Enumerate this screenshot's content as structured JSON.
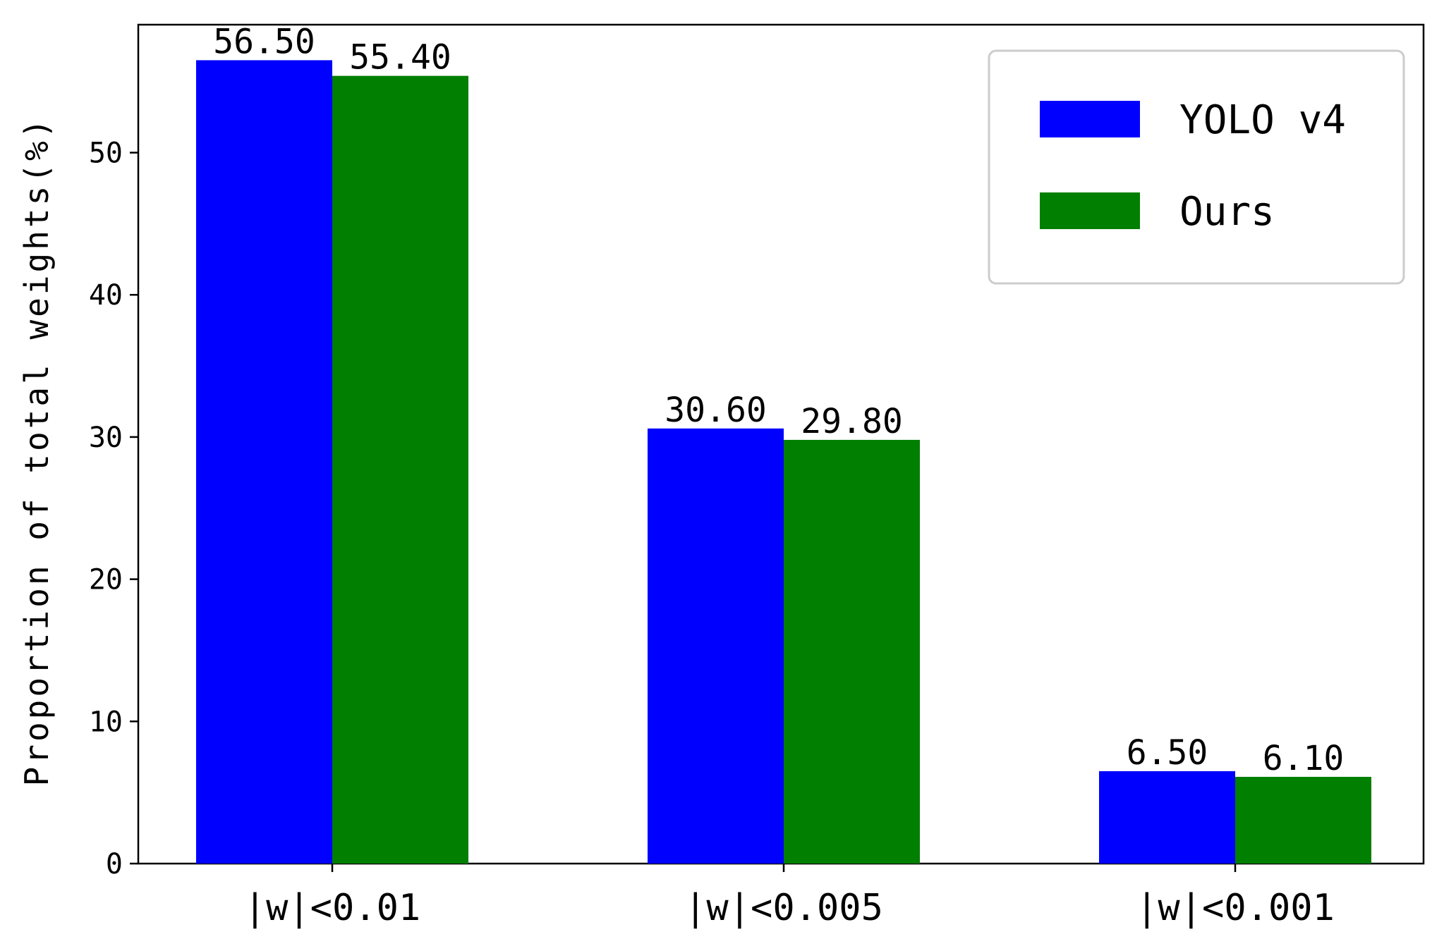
{
  "chart_data": {
    "type": "bar",
    "categories": [
      "|w|<0.01",
      "|w|<0.005",
      "|w|<0.001"
    ],
    "series": [
      {
        "name": "YOLO v4",
        "color": "#0000ff",
        "values": [
          56.5,
          30.6,
          6.5
        ],
        "labels": [
          "56.50",
          "30.60",
          "6.50"
        ]
      },
      {
        "name": "Ours",
        "color": "#007f00",
        "values": [
          55.4,
          29.8,
          6.1
        ],
        "labels": [
          "55.40",
          "29.80",
          "6.10"
        ]
      }
    ],
    "ylabel": "Proportion of total weights(%)",
    "xlabel": "",
    "ylim": [
      0,
      59
    ],
    "yticks": [
      0,
      10,
      20,
      30,
      40,
      50
    ],
    "grid": false,
    "legend_position": "top-right"
  }
}
